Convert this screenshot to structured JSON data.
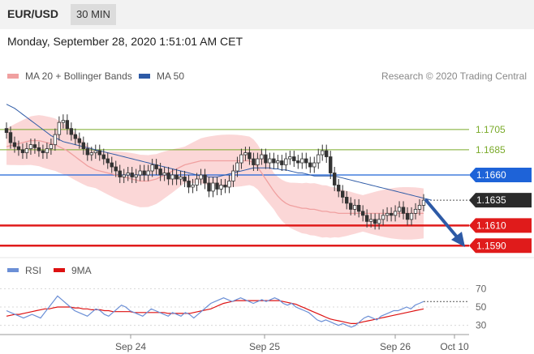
{
  "header": {
    "pair": "EUR/USD",
    "timeframe": "30 MIN"
  },
  "datetime": "Monday, September 28, 2020 1:51:01 AM CET",
  "colors": {
    "ma20": "#f0a0a0",
    "ma50": "#2d5aa6",
    "rsi": "#6b8fd6",
    "ma9": "#dd1111",
    "green": "#7aaa2a",
    "red": "#e01b1b",
    "blue": "#1e63d8",
    "dark": "#2b2b2b",
    "band": "#f9c9c9"
  },
  "chart_data": [
    {
      "type": "candlestick",
      "legend": [
        {
          "label": "MA 20 + Bollinger Bands",
          "color": "#f0a0a0"
        },
        {
          "label": "MA 50",
          "color": "#2d5aa6"
        }
      ],
      "credit": "Research © 2020 Trading Central",
      "ylim": [
        1.1583,
        1.1745
      ],
      "x_ticks": [
        "Sep 24",
        "Sep 25",
        "Sep 26",
        "Oct 10"
      ],
      "levels": [
        {
          "value": 1.1705,
          "label": "1.1705",
          "style": "line",
          "color": "#7aaa2a"
        },
        {
          "value": 1.1685,
          "label": "1.1685",
          "style": "line",
          "color": "#7aaa2a"
        },
        {
          "value": 1.166,
          "label": "1.1660",
          "style": "badge",
          "color": "#1e63d8"
        },
        {
          "value": 1.1635,
          "label": "1.1635",
          "style": "badge-current",
          "color": "#2b2b2b"
        },
        {
          "value": 1.161,
          "label": "1.1610",
          "style": "badge",
          "color": "#e01b1b"
        },
        {
          "value": 1.159,
          "label": "1.1590",
          "style": "badge",
          "color": "#e01b1b"
        }
      ],
      "close": [
        1.1702,
        1.1692,
        1.1688,
        1.1685,
        1.1682,
        1.1686,
        1.169,
        1.1687,
        1.1684,
        1.1682,
        1.1686,
        1.169,
        1.17,
        1.1712,
        1.1714,
        1.1706,
        1.17,
        1.1696,
        1.1692,
        1.1686,
        1.168,
        1.1682,
        1.1684,
        1.168,
        1.1676,
        1.1672,
        1.1668,
        1.1664,
        1.1658,
        1.166,
        1.1662,
        1.1658,
        1.166,
        1.1664,
        1.166,
        1.1664,
        1.167,
        1.1666,
        1.166,
        1.1662,
        1.1656,
        1.166,
        1.1656,
        1.1658,
        1.1654,
        1.1648,
        1.165,
        1.1656,
        1.166,
        1.1652,
        1.1644,
        1.1652,
        1.1646,
        1.165,
        1.1648,
        1.1654,
        1.1664,
        1.1672,
        1.168,
        1.1682,
        1.1676,
        1.167,
        1.1676,
        1.168,
        1.1672,
        1.1676,
        1.1672,
        1.1674,
        1.167,
        1.1676,
        1.1678,
        1.1674,
        1.1672,
        1.1676,
        1.1672,
        1.1668,
        1.1672,
        1.168,
        1.1684,
        1.1678,
        1.1662,
        1.165,
        1.1644,
        1.1638,
        1.1632,
        1.1626,
        1.163,
        1.1624,
        1.162,
        1.1614,
        1.1616,
        1.1612,
        1.1616,
        1.162,
        1.1622,
        1.162,
        1.1624,
        1.1628,
        1.1622,
        1.1616,
        1.1622,
        1.1626,
        1.163,
        1.1635
      ],
      "ma20": [
        1.1688,
        1.1689,
        1.169,
        1.1691,
        1.1692,
        1.1693,
        1.1694,
        1.1694,
        1.1694,
        1.1693,
        1.1692,
        1.1691,
        1.169,
        1.1688,
        1.1686,
        1.1684,
        1.1681,
        1.1678,
        1.1675,
        1.1672,
        1.1669,
        1.1667,
        1.1665,
        1.1664,
        1.1663,
        1.1662,
        1.1661,
        1.166,
        1.1659,
        1.1658,
        1.1657,
        1.1656,
        1.1655,
        1.1654,
        1.1654,
        1.1654,
        1.1655,
        1.1656,
        1.1658,
        1.166,
        1.1662,
        1.1664,
        1.1666,
        1.1668,
        1.167,
        1.1671,
        1.1672,
        1.1673,
        1.1674,
        1.1674,
        1.1674,
        1.1674,
        1.1674,
        1.1674,
        1.1674,
        1.1674,
        1.1674,
        1.1674,
        1.1674,
        1.1674,
        1.1674,
        1.1672,
        1.1668,
        1.1662,
        1.1656,
        1.165,
        1.1644,
        1.1639,
        1.1635,
        1.1632,
        1.163,
        1.1629,
        1.1628,
        1.1627,
        1.1627,
        1.1626,
        1.1626,
        1.1625,
        1.1624,
        1.1624,
        1.1623,
        1.1623,
        1.1622,
        1.1622,
        1.1622,
        1.1622,
        1.1622,
        1.1622,
        1.1622,
        1.1622,
        1.1622,
        1.1622,
        1.1622,
        1.1622,
        1.1622,
        1.1622,
        1.1622,
        1.1622,
        1.1622,
        1.1622,
        1.1622,
        1.1622,
        1.1622,
        1.1622
      ],
      "ma50": [
        1.173,
        1.1728,
        1.1726,
        1.1723,
        1.172,
        1.1717,
        1.1714,
        1.1711,
        1.1708,
        1.1705,
        1.1702,
        1.1699,
        1.1697,
        1.1695,
        1.1693,
        1.1692,
        1.1691,
        1.169,
        1.1689,
        1.1688,
        1.1687,
        1.1686,
        1.1685,
        1.1684,
        1.1683,
        1.1682,
        1.1681,
        1.168,
        1.1679,
        1.1678,
        1.1677,
        1.1676,
        1.1675,
        1.1674,
        1.1673,
        1.1672,
        1.1671,
        1.167,
        1.1669,
        1.1668,
        1.1667,
        1.1666,
        1.1665,
        1.1664,
        1.1663,
        1.1662,
        1.1661,
        1.166,
        1.1659,
        1.1659,
        1.1658,
        1.1658,
        1.1658,
        1.1659,
        1.166,
        1.1661,
        1.1662,
        1.1663,
        1.1664,
        1.1665,
        1.1666,
        1.1667,
        1.1667,
        1.1667,
        1.1667,
        1.1667,
        1.1666,
        1.1666,
        1.1665,
        1.1665,
        1.1664,
        1.1663,
        1.1662,
        1.1662,
        1.1661,
        1.166,
        1.1659,
        1.1659,
        1.1659,
        1.1659,
        1.1659,
        1.1659,
        1.1658,
        1.1657,
        1.1656,
        1.1655,
        1.1654,
        1.1653,
        1.1652,
        1.1651,
        1.165,
        1.1649,
        1.1648,
        1.1647,
        1.1646,
        1.1645,
        1.1644,
        1.1643,
        1.1642,
        1.1641,
        1.164,
        1.1639,
        1.1638,
        1.1637,
        1.1636,
        1.1635
      ]
    },
    {
      "type": "line",
      "legend": [
        {
          "label": "RSI",
          "color": "#6b8fd6"
        },
        {
          "label": "9MA",
          "color": "#dd1111"
        }
      ],
      "ylim": [
        20,
        80
      ],
      "y_ticks": [
        "70",
        "50",
        "30"
      ],
      "rsi": [
        46,
        44,
        42,
        40,
        38,
        40,
        42,
        40,
        38,
        44,
        50,
        56,
        62,
        58,
        54,
        50,
        46,
        44,
        42,
        40,
        44,
        48,
        46,
        42,
        40,
        44,
        48,
        52,
        50,
        46,
        44,
        42,
        40,
        44,
        48,
        46,
        44,
        42,
        40,
        44,
        42,
        40,
        44,
        42,
        38,
        42,
        46,
        50,
        54,
        56,
        58,
        60,
        58,
        56,
        58,
        60,
        58,
        56,
        54,
        56,
        58,
        56,
        58,
        60,
        58,
        54,
        52,
        54,
        50,
        48,
        46,
        44,
        40,
        36,
        34,
        36,
        34,
        32,
        30,
        32,
        30,
        28,
        30,
        34,
        38,
        40,
        38,
        36,
        40,
        42,
        44,
        46,
        46,
        48,
        50,
        48,
        52,
        54,
        56
      ],
      "ma9": [
        40,
        41,
        42,
        42,
        43,
        44,
        45,
        46,
        47,
        48,
        48,
        49,
        50,
        50,
        50,
        50,
        49,
        49,
        48,
        48,
        47,
        47,
        47,
        46,
        46,
        45,
        45,
        45,
        45,
        45,
        44,
        44,
        44,
        44,
        44,
        44,
        44,
        44,
        43,
        43,
        43,
        43,
        43,
        43,
        44,
        45,
        46,
        47,
        48,
        50,
        52,
        54,
        55,
        56,
        57,
        57,
        57,
        57,
        57,
        57,
        57,
        57,
        57,
        57,
        57,
        56,
        55,
        54,
        53,
        51,
        49,
        47,
        45,
        43,
        41,
        39,
        37,
        36,
        35,
        34,
        33,
        32,
        32,
        33,
        34,
        35,
        36,
        37,
        38,
        39,
        40,
        41,
        42,
        43,
        44,
        45,
        46,
        47,
        48
      ]
    }
  ]
}
